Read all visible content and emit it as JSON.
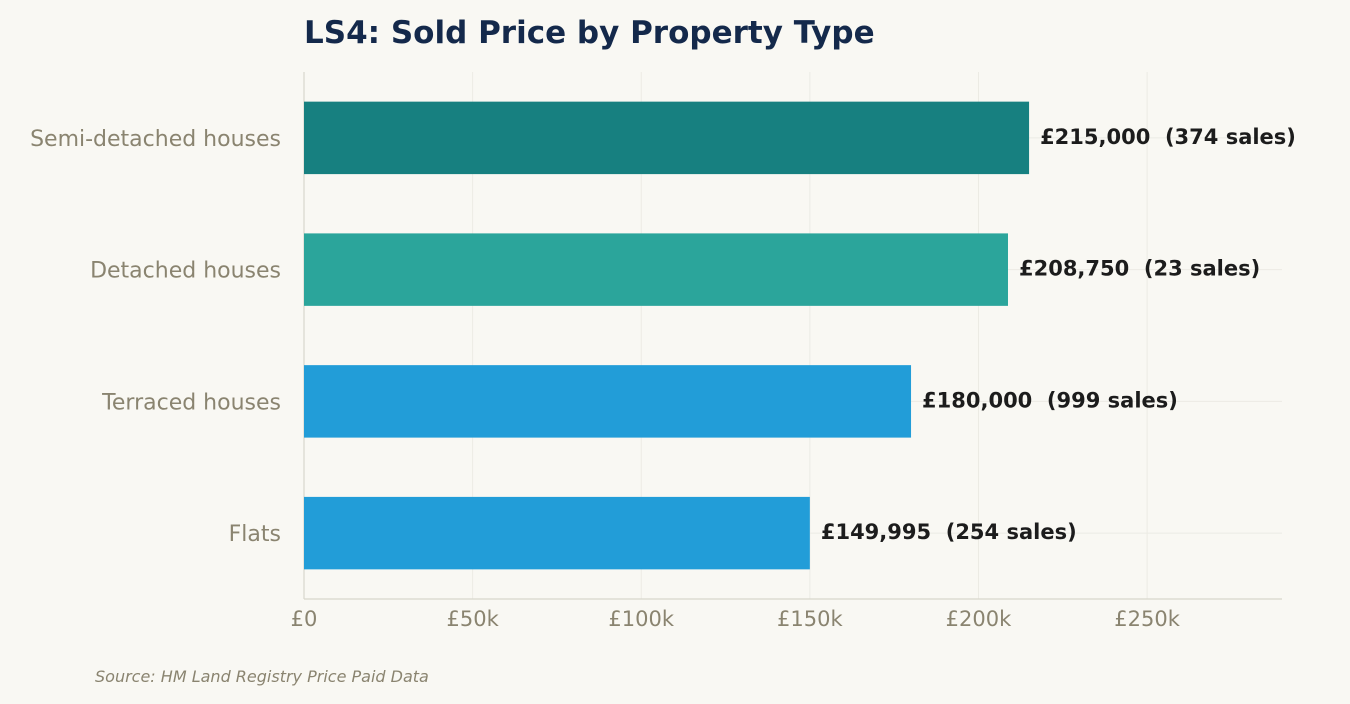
{
  "chart_data": {
    "type": "bar",
    "orientation": "horizontal",
    "title": "LS4: Sold Price by Property Type",
    "source": "Source: HM Land Registry Price Paid Data",
    "xlim": [
      0,
      290000
    ],
    "xticks": [
      {
        "value": 0,
        "label": "£0"
      },
      {
        "value": 50000,
        "label": "£50k"
      },
      {
        "value": 100000,
        "label": "£100k"
      },
      {
        "value": 150000,
        "label": "£150k"
      },
      {
        "value": 200000,
        "label": "£200k"
      },
      {
        "value": 250000,
        "label": "£250k"
      }
    ],
    "grid": true,
    "bars": [
      {
        "category": "Semi-detached houses",
        "value": 215000,
        "sales": 374,
        "label": "£215,000  (374 sales)",
        "color": "#178080"
      },
      {
        "category": "Detached houses",
        "value": 208750,
        "sales": 23,
        "label": "£208,750  (23 sales)",
        "color": "#2ba59b"
      },
      {
        "category": "Terraced houses",
        "value": 180000,
        "sales": 999,
        "label": "£180,000  (999 sales)",
        "color": "#229dd8"
      },
      {
        "category": "Flats",
        "value": 149995,
        "sales": 254,
        "label": "£149,995  (254 sales)",
        "color": "#229dd8"
      }
    ]
  }
}
